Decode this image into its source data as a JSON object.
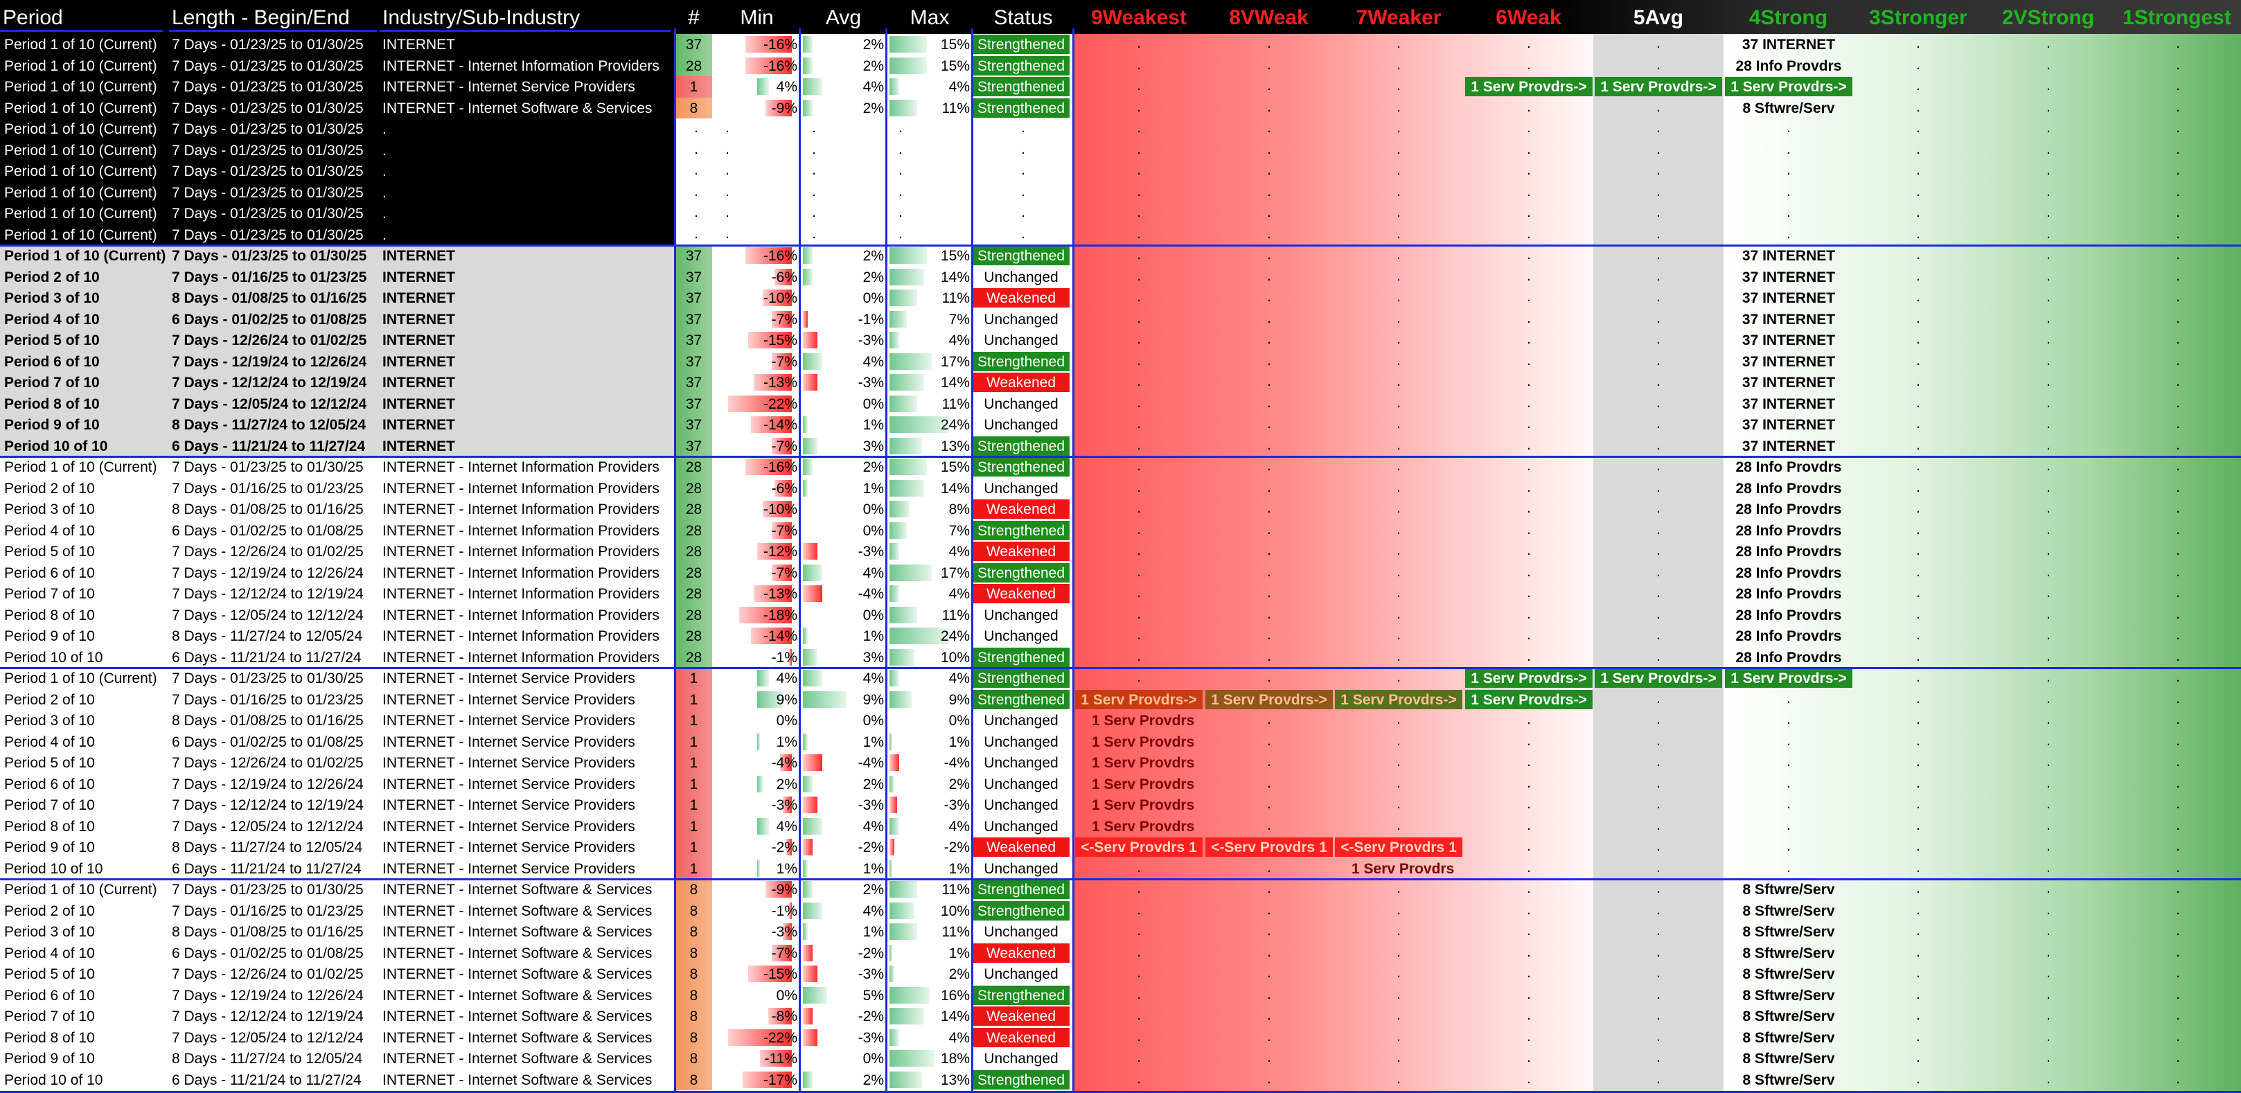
{
  "header": {
    "period": "Period",
    "length": "Length - Begin/End",
    "industry": "Industry/Sub-Industry",
    "count": "#",
    "min": "Min",
    "avg": "Avg",
    "max": "Max",
    "status": "Status",
    "z9": "9Weakest",
    "z8": "8VWeak",
    "z7": "7Weaker",
    "z6": "6Weak",
    "z5": "5Avg",
    "z4": "4Strong",
    "z3": "3Stronger",
    "z2": "2VStrong",
    "z1": "1Strongest"
  },
  "colors": {
    "strengthened": "#1e8c1e",
    "weakened": "#ef1515",
    "divider": "#1a2ae0",
    "count_green": "#70c070",
    "count_red": "#f06060",
    "count_orange": "#f4a070"
  },
  "rows": [
    {
      "period": "Period 1 of 10 (Current)",
      "length": "7 Days - 01/23/25 to 01/30/25",
      "industry": "INTERNET",
      "count": "37",
      "min": -16,
      "avg": 2,
      "max": 15,
      "status": "Strengthened",
      "zones": {
        "4": "37 INTERNET"
      }
    },
    {
      "period": "Period 1 of 10 (Current)",
      "length": "7 Days - 01/23/25 to 01/30/25",
      "industry": "INTERNET - Internet Information Providers",
      "count": "28",
      "min": -16,
      "avg": 2,
      "max": 15,
      "status": "Strengthened",
      "zones": {
        "4": "28 Info Provdrs"
      }
    },
    {
      "period": "Period 1 of 10 (Current)",
      "length": "7 Days - 01/23/25 to 01/30/25",
      "industry": "INTERNET - Internet Service Providers",
      "count": "1",
      "min": 4,
      "avg": 4,
      "max": 4,
      "status": "Strengthened",
      "zones": {
        "6": "1 Serv Provdrs->",
        "5": "1 Serv Provdrs->",
        "4": "1 Serv Provdrs->"
      }
    },
    {
      "period": "Period 1 of 10 (Current)",
      "length": "7 Days - 01/23/25 to 01/30/25",
      "industry": "INTERNET - Internet Software & Services",
      "count": "8",
      "min": -9,
      "avg": 2,
      "max": 11,
      "status": "Strengthened",
      "zones": {
        "4": "8 Sftwre/Serv"
      }
    },
    {
      "period": "Period 1 of 10 (Current)",
      "length": "7 Days - 01/23/25 to 01/30/25",
      "industry": ".",
      "count": "",
      "empty": true
    },
    {
      "period": "Period 1 of 10 (Current)",
      "length": "7 Days - 01/23/25 to 01/30/25",
      "industry": ".",
      "count": "",
      "empty": true
    },
    {
      "period": "Period 1 of 10 (Current)",
      "length": "7 Days - 01/23/25 to 01/30/25",
      "industry": ".",
      "count": "",
      "empty": true
    },
    {
      "period": "Period 1 of 10 (Current)",
      "length": "7 Days - 01/23/25 to 01/30/25",
      "industry": ".",
      "count": "",
      "empty": true
    },
    {
      "period": "Period 1 of 10 (Current)",
      "length": "7 Days - 01/23/25 to 01/30/25",
      "industry": ".",
      "count": "",
      "empty": true
    },
    {
      "period": "Period 1 of 10 (Current)",
      "length": "7 Days - 01/23/25 to 01/30/25",
      "industry": ".",
      "count": "",
      "empty": true
    },
    {
      "period": "Period 1 of 10 (Current)",
      "length": "7 Days - 01/23/25 to 01/30/25",
      "industry": "INTERNET",
      "count": "37",
      "min": -16,
      "avg": 2,
      "max": 15,
      "status": "Strengthened",
      "zones": {
        "4": "37 INTERNET"
      }
    },
    {
      "period": "Period 2 of 10",
      "length": "7 Days - 01/16/25 to 01/23/25",
      "industry": "INTERNET",
      "count": "37",
      "min": -6,
      "avg": 2,
      "max": 14,
      "status": "Unchanged",
      "zones": {
        "4": "37 INTERNET"
      }
    },
    {
      "period": "Period 3 of 10",
      "length": "8 Days - 01/08/25 to 01/16/25",
      "industry": "INTERNET",
      "count": "37",
      "min": -10,
      "avg": 0,
      "max": 11,
      "status": "Weakened",
      "zones": {
        "4": "37 INTERNET"
      }
    },
    {
      "period": "Period 4 of 10",
      "length": "6 Days - 01/02/25 to 01/08/25",
      "industry": "INTERNET",
      "count": "37",
      "min": -7,
      "avg": -1,
      "max": 7,
      "status": "Unchanged",
      "zones": {
        "4": "37 INTERNET"
      }
    },
    {
      "period": "Period 5 of 10",
      "length": "7 Days - 12/26/24 to 01/02/25",
      "industry": "INTERNET",
      "count": "37",
      "min": -15,
      "avg": -3,
      "max": 4,
      "status": "Unchanged",
      "zones": {
        "4": "37 INTERNET"
      }
    },
    {
      "period": "Period 6 of 10",
      "length": "7 Days - 12/19/24 to 12/26/24",
      "industry": "INTERNET",
      "count": "37",
      "min": -7,
      "avg": 4,
      "max": 17,
      "status": "Strengthened",
      "zones": {
        "4": "37 INTERNET"
      }
    },
    {
      "period": "Period 7 of 10",
      "length": "7 Days - 12/12/24 to 12/19/24",
      "industry": "INTERNET",
      "count": "37",
      "min": -13,
      "avg": -3,
      "max": 14,
      "status": "Weakened",
      "zones": {
        "4": "37 INTERNET"
      }
    },
    {
      "period": "Period 8 of 10",
      "length": "7 Days - 12/05/24 to 12/12/24",
      "industry": "INTERNET",
      "count": "37",
      "min": -22,
      "avg": 0,
      "max": 11,
      "status": "Unchanged",
      "zones": {
        "4": "37 INTERNET"
      }
    },
    {
      "period": "Period 9 of 10",
      "length": "8 Days - 11/27/24 to 12/05/24",
      "industry": "INTERNET",
      "count": "37",
      "min": -14,
      "avg": 1,
      "max": 24,
      "status": "Unchanged",
      "zones": {
        "4": "37 INTERNET"
      }
    },
    {
      "period": "Period 10 of 10",
      "length": "6 Days - 11/21/24 to 11/27/24",
      "industry": "INTERNET",
      "count": "37",
      "min": -7,
      "avg": 3,
      "max": 13,
      "status": "Strengthened",
      "zones": {
        "4": "37 INTERNET"
      }
    },
    {
      "period": "Period 1 of 10 (Current)",
      "length": "7 Days - 01/23/25 to 01/30/25",
      "industry": "INTERNET - Internet Information Providers",
      "count": "28",
      "min": -16,
      "avg": 2,
      "max": 15,
      "status": "Strengthened",
      "zones": {
        "4": "28 Info Provdrs"
      }
    },
    {
      "period": "Period 2 of 10",
      "length": "7 Days - 01/16/25 to 01/23/25",
      "industry": "INTERNET - Internet Information Providers",
      "count": "28",
      "min": -6,
      "avg": 1,
      "max": 14,
      "status": "Unchanged",
      "zones": {
        "4": "28 Info Provdrs"
      }
    },
    {
      "period": "Period 3 of 10",
      "length": "8 Days - 01/08/25 to 01/16/25",
      "industry": "INTERNET - Internet Information Providers",
      "count": "28",
      "min": -10,
      "avg": 0,
      "max": 8,
      "status": "Weakened",
      "zones": {
        "4": "28 Info Provdrs"
      }
    },
    {
      "period": "Period 4 of 10",
      "length": "6 Days - 01/02/25 to 01/08/25",
      "industry": "INTERNET - Internet Information Providers",
      "count": "28",
      "min": -7,
      "avg": 0,
      "max": 7,
      "status": "Strengthened",
      "zones": {
        "4": "28 Info Provdrs"
      }
    },
    {
      "period": "Period 5 of 10",
      "length": "7 Days - 12/26/24 to 01/02/25",
      "industry": "INTERNET - Internet Information Providers",
      "count": "28",
      "min": -12,
      "avg": -3,
      "max": 4,
      "status": "Weakened",
      "zones": {
        "4": "28 Info Provdrs"
      }
    },
    {
      "period": "Period 6 of 10",
      "length": "7 Days - 12/19/24 to 12/26/24",
      "industry": "INTERNET - Internet Information Providers",
      "count": "28",
      "min": -7,
      "avg": 4,
      "max": 17,
      "status": "Strengthened",
      "zones": {
        "4": "28 Info Provdrs"
      }
    },
    {
      "period": "Period 7 of 10",
      "length": "7 Days - 12/12/24 to 12/19/24",
      "industry": "INTERNET - Internet Information Providers",
      "count": "28",
      "min": -13,
      "avg": -4,
      "max": 4,
      "status": "Weakened",
      "zones": {
        "4": "28 Info Provdrs"
      }
    },
    {
      "period": "Period 8 of 10",
      "length": "7 Days - 12/05/24 to 12/12/24",
      "industry": "INTERNET - Internet Information Providers",
      "count": "28",
      "min": -18,
      "avg": 0,
      "max": 11,
      "status": "Unchanged",
      "zones": {
        "4": "28 Info Provdrs"
      }
    },
    {
      "period": "Period 9 of 10",
      "length": "8 Days - 11/27/24 to 12/05/24",
      "industry": "INTERNET - Internet Information Providers",
      "count": "28",
      "min": -14,
      "avg": 1,
      "max": 24,
      "status": "Unchanged",
      "zones": {
        "4": "28 Info Provdrs"
      }
    },
    {
      "period": "Period 10 of 10",
      "length": "6 Days - 11/21/24 to 11/27/24",
      "industry": "INTERNET - Internet Information Providers",
      "count": "28",
      "min": -1,
      "avg": 3,
      "max": 10,
      "status": "Strengthened",
      "zones": {
        "4": "28 Info Provdrs"
      }
    },
    {
      "period": "Period 1 of 10 (Current)",
      "length": "7 Days - 01/23/25 to 01/30/25",
      "industry": "INTERNET - Internet Service Providers",
      "count": "1",
      "min": 4,
      "avg": 4,
      "max": 4,
      "status": "Strengthened",
      "zones": {
        "6": "1 Serv Provdrs->",
        "5": "1 Serv Provdrs->",
        "4": "1 Serv Provdrs->"
      }
    },
    {
      "period": "Period 2 of 10",
      "length": "7 Days - 01/16/25 to 01/23/25",
      "industry": "INTERNET - Internet Service Providers",
      "count": "1",
      "min": 9,
      "avg": 9,
      "max": 9,
      "status": "Strengthened",
      "zones": {
        "9": "1 Serv Provdrs->",
        "8": "1 Serv Provdrs->",
        "7": "1 Serv Provdrs->",
        "6": "1 Serv Provdrs->"
      },
      "shade": true
    },
    {
      "period": "Period 3 of 10",
      "length": "8 Days - 01/08/25 to 01/16/25",
      "industry": "INTERNET - Internet Service Providers",
      "count": "1",
      "min": 0,
      "avg": 0,
      "max": 0,
      "status": "Unchanged",
      "zones": {
        "9": "1 Serv Provdrs"
      }
    },
    {
      "period": "Period 4 of 10",
      "length": "6 Days - 01/02/25 to 01/08/25",
      "industry": "INTERNET - Internet Service Providers",
      "count": "1",
      "min": 1,
      "avg": 1,
      "max": 1,
      "status": "Unchanged",
      "zones": {
        "9": "1 Serv Provdrs"
      }
    },
    {
      "period": "Period 5 of 10",
      "length": "7 Days - 12/26/24 to 01/02/25",
      "industry": "INTERNET - Internet Service Providers",
      "count": "1",
      "min": -4,
      "avg": -4,
      "max": -4,
      "status": "Unchanged",
      "zones": {
        "9": "1 Serv Provdrs"
      }
    },
    {
      "period": "Period 6 of 10",
      "length": "7 Days - 12/19/24 to 12/26/24",
      "industry": "INTERNET - Internet Service Providers",
      "count": "1",
      "min": 2,
      "avg": 2,
      "max": 2,
      "status": "Unchanged",
      "zones": {
        "9": "1 Serv Provdrs"
      }
    },
    {
      "period": "Period 7 of 10",
      "length": "7 Days - 12/12/24 to 12/19/24",
      "industry": "INTERNET - Internet Service Providers",
      "count": "1",
      "min": -3,
      "avg": -3,
      "max": -3,
      "status": "Unchanged",
      "zones": {
        "9": "1 Serv Provdrs"
      }
    },
    {
      "period": "Period 8 of 10",
      "length": "7 Days - 12/05/24 to 12/12/24",
      "industry": "INTERNET - Internet Service Providers",
      "count": "1",
      "min": 4,
      "avg": 4,
      "max": 4,
      "status": "Unchanged",
      "zones": {
        "9": "1 Serv Provdrs"
      }
    },
    {
      "period": "Period 9 of 10",
      "length": "8 Days - 11/27/24 to 12/05/24",
      "industry": "INTERNET - Internet Service Providers",
      "count": "1",
      "min": -2,
      "avg": -2,
      "max": -2,
      "status": "Weakened",
      "zones": {
        "9": "<-Serv Provdrs 1",
        "8": "<-Serv Provdrs 1",
        "7": "<-Serv Provdrs 1"
      },
      "redchips": true
    },
    {
      "period": "Period 10 of 10",
      "length": "6 Days - 11/21/24 to 11/27/24",
      "industry": "INTERNET - Internet Service Providers",
      "count": "1",
      "min": 1,
      "avg": 1,
      "max": 1,
      "status": "Unchanged",
      "zones": {
        "7": "1 Serv Provdrs"
      }
    },
    {
      "period": "Period 1 of 10 (Current)",
      "length": "7 Days - 01/23/25 to 01/30/25",
      "industry": "INTERNET - Internet Software & Services",
      "count": "8",
      "min": -9,
      "avg": 2,
      "max": 11,
      "status": "Strengthened",
      "zones": {
        "4": "8 Sftwre/Serv"
      }
    },
    {
      "period": "Period 2 of 10",
      "length": "7 Days - 01/16/25 to 01/23/25",
      "industry": "INTERNET - Internet Software & Services",
      "count": "8",
      "min": -1,
      "avg": 4,
      "max": 10,
      "status": "Strengthened",
      "zones": {
        "4": "8 Sftwre/Serv"
      }
    },
    {
      "period": "Period 3 of 10",
      "length": "8 Days - 01/08/25 to 01/16/25",
      "industry": "INTERNET - Internet Software & Services",
      "count": "8",
      "min": -3,
      "avg": 1,
      "max": 11,
      "status": "Unchanged",
      "zones": {
        "4": "8 Sftwre/Serv"
      }
    },
    {
      "period": "Period 4 of 10",
      "length": "6 Days - 01/02/25 to 01/08/25",
      "industry": "INTERNET - Internet Software & Services",
      "count": "8",
      "min": -7,
      "avg": -2,
      "max": 1,
      "status": "Weakened",
      "zones": {
        "4": "8 Sftwre/Serv"
      }
    },
    {
      "period": "Period 5 of 10",
      "length": "7 Days - 12/26/24 to 01/02/25",
      "industry": "INTERNET - Internet Software & Services",
      "count": "8",
      "min": -15,
      "avg": -3,
      "max": 2,
      "status": "Unchanged",
      "zones": {
        "4": "8 Sftwre/Serv"
      }
    },
    {
      "period": "Period 6 of 10",
      "length": "7 Days - 12/19/24 to 12/26/24",
      "industry": "INTERNET - Internet Software & Services",
      "count": "8",
      "min": 0,
      "avg": 5,
      "max": 16,
      "status": "Strengthened",
      "zones": {
        "4": "8 Sftwre/Serv"
      }
    },
    {
      "period": "Period 7 of 10",
      "length": "7 Days - 12/12/24 to 12/19/24",
      "industry": "INTERNET - Internet Software & Services",
      "count": "8",
      "min": -8,
      "avg": -2,
      "max": 14,
      "status": "Weakened",
      "zones": {
        "4": "8 Sftwre/Serv"
      }
    },
    {
      "period": "Period 8 of 10",
      "length": "7 Days - 12/05/24 to 12/12/24",
      "industry": "INTERNET - Internet Software & Services",
      "count": "8",
      "min": -22,
      "avg": -3,
      "max": 4,
      "status": "Weakened",
      "zones": {
        "4": "8 Sftwre/Serv"
      }
    },
    {
      "period": "Period 9 of 10",
      "length": "8 Days - 11/27/24 to 12/05/24",
      "industry": "INTERNET - Internet Software & Services",
      "count": "8",
      "min": -11,
      "avg": 0,
      "max": 18,
      "status": "Unchanged",
      "zones": {
        "4": "8 Sftwre/Serv"
      }
    },
    {
      "period": "Period 10 of 10",
      "length": "6 Days - 11/21/24 to 11/27/24",
      "industry": "INTERNET - Internet Software & Services",
      "count": "8",
      "min": -17,
      "avg": 2,
      "max": 13,
      "status": "Strengthened",
      "zones": {
        "4": "8 Sftwre/Serv"
      }
    }
  ],
  "empty_dot": "."
}
